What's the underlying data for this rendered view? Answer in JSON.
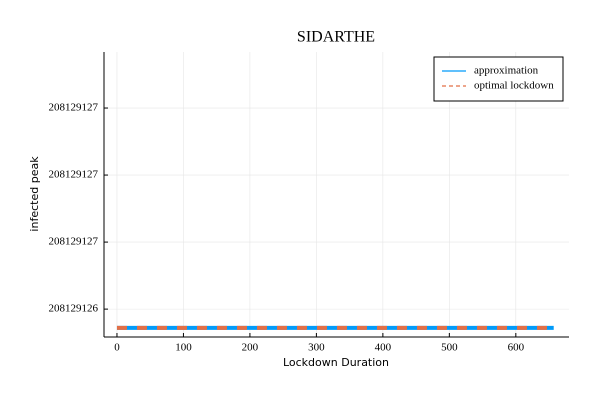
{
  "chart_data": {
    "type": "line",
    "title": "SIDARTHE",
    "x_label": "Lockdown Duration",
    "y_label": "infected peak",
    "x": [
      0,
      100,
      200,
      300,
      400,
      500,
      600,
      657
    ],
    "series": [
      {
        "name": "approximation",
        "color": "#009af9",
        "dash": false,
        "values": [
          208129126.18,
          208129126.18,
          208129126.18,
          208129126.18,
          208129126.18,
          208129126.18,
          208129126.18,
          208129126.18
        ]
      },
      {
        "name": "optimal lockdown",
        "color": "#e26f46",
        "dash": true,
        "values": [
          208129126.18,
          208129126.18,
          208129126.18,
          208129126.18,
          208129126.18,
          208129126.18,
          208129126.18,
          208129126.18
        ]
      }
    ],
    "xlim": [
      -19.5,
      680
    ],
    "ylim": [
      208129126.146,
      208129127.209
    ],
    "xticks": [
      0,
      100,
      200,
      300,
      400,
      500,
      600
    ],
    "yticks": [
      {
        "value": 208129126.25,
        "label": "208129126"
      },
      {
        "value": 208129126.5,
        "label": "208129127"
      },
      {
        "value": 208129126.75,
        "label": "208129127"
      },
      {
        "value": 208129127.0,
        "label": "208129127"
      }
    ],
    "grid": true,
    "legend": "top-right"
  }
}
